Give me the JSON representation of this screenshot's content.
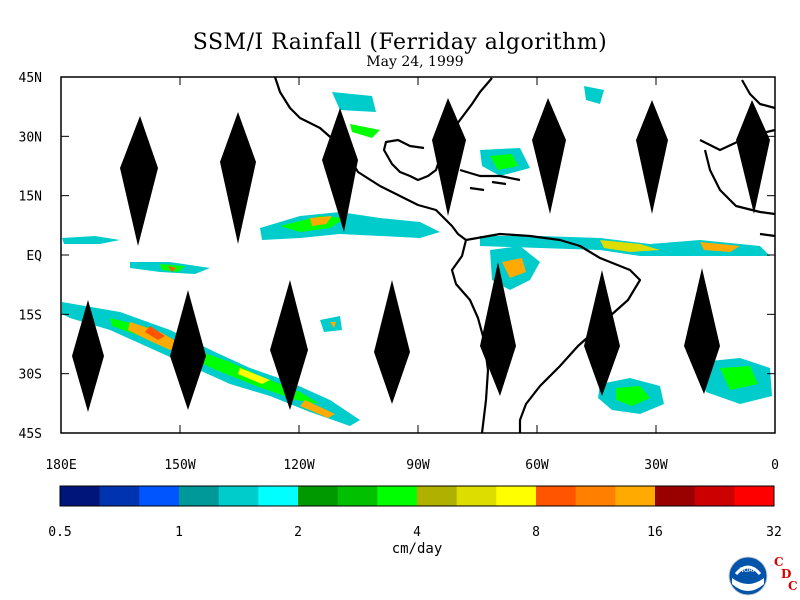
{
  "title": "SSM/I Rainfall (Ferriday algorithm)",
  "subtitle": "May 24, 1999",
  "map": {
    "lat_labels": [
      "45N",
      "30N",
      "15N",
      "EQ",
      "15S",
      "30S",
      "45S"
    ],
    "lon_labels": [
      "180E",
      "150W",
      "120W",
      "90W",
      "60W",
      "30W",
      "0"
    ],
    "lat_range": [
      -45,
      45
    ],
    "lon_range": [
      -180,
      0
    ],
    "missing_data_swaths_color": "#000000",
    "coastline_color": "#000000"
  },
  "colorbar": {
    "unit_label": "cm/day",
    "tick_labels": [
      "0.5",
      "1",
      "2",
      "4",
      "8",
      "16",
      "32"
    ],
    "bins": [
      "#00157a",
      "#0033b0",
      "#0055ff",
      "#009999",
      "#00cccc",
      "#00ffff",
      "#009900",
      "#00c000",
      "#00ff00",
      "#b0b000",
      "#dddd00",
      "#ffff00",
      "#ff5500",
      "#ff8000",
      "#ffaa00",
      "#990000",
      "#cc0000",
      "#ff0000"
    ]
  },
  "logo": {
    "agency": "NOAA",
    "letters": [
      "C",
      "D",
      "C"
    ]
  }
}
